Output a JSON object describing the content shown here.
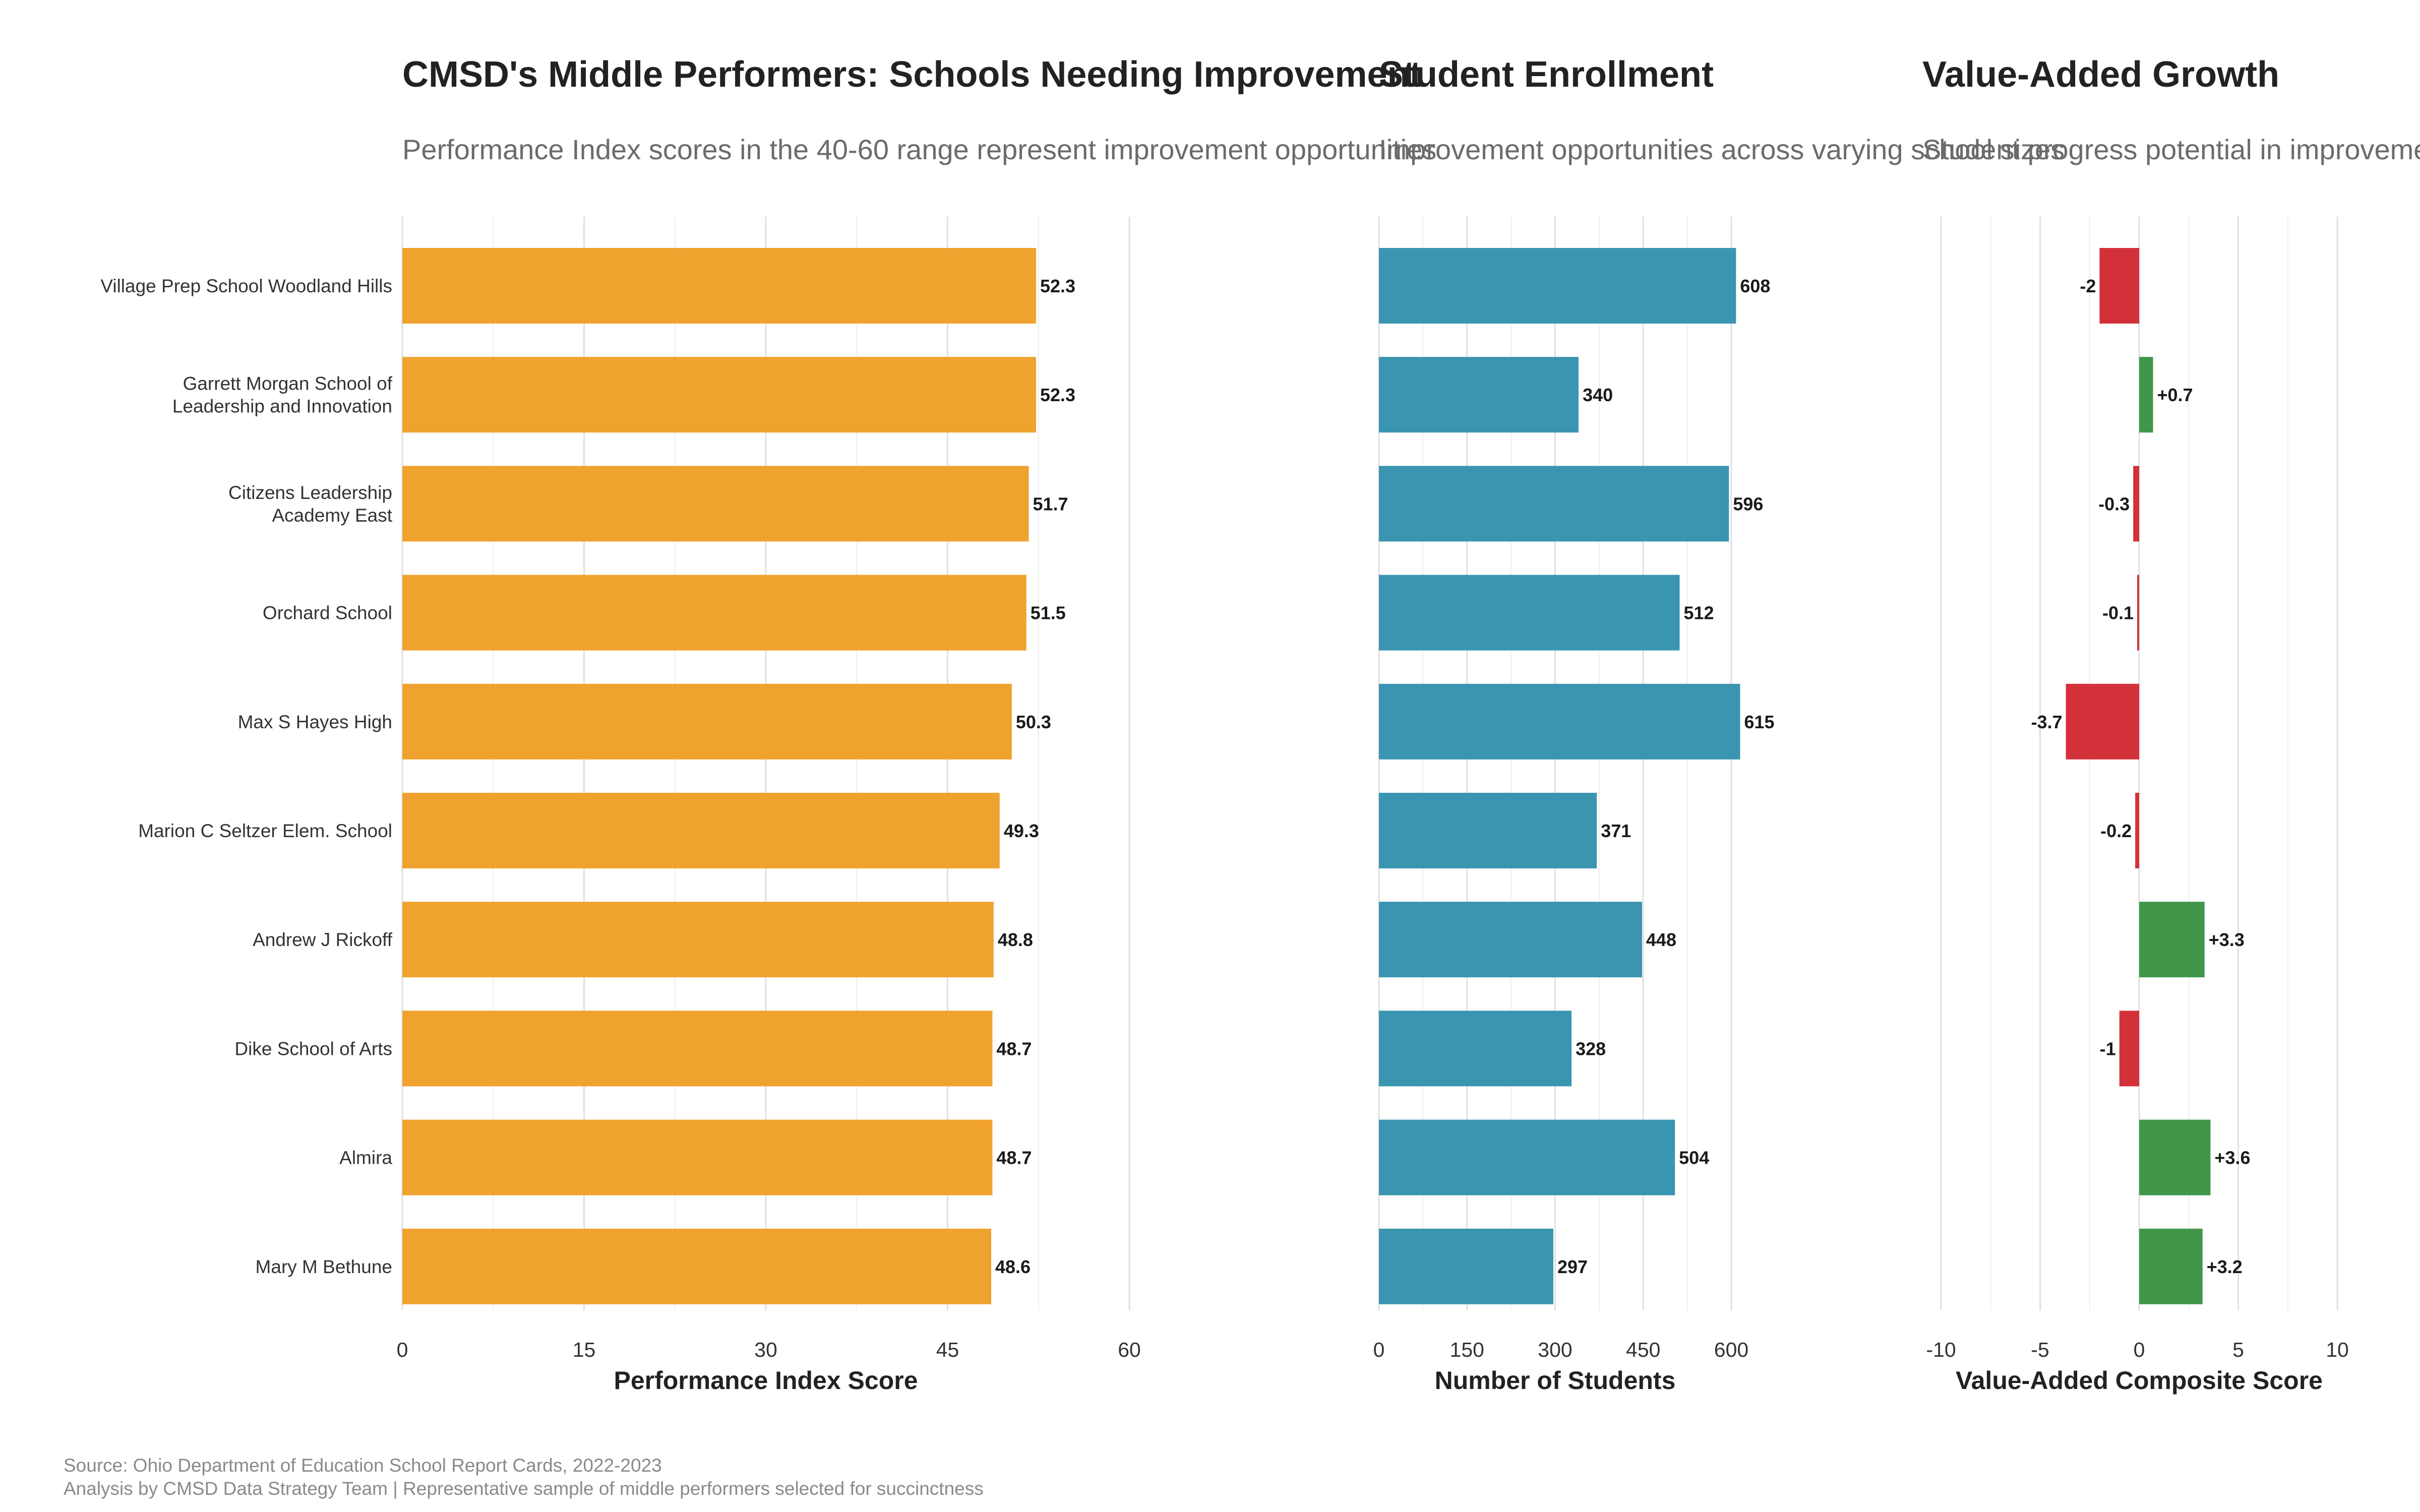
{
  "colors": {
    "performance": "#F0A22E",
    "enrollment": "#3A95B1",
    "negative": "#D3313A",
    "positive": "#42964A",
    "grid": "#e0e0e0"
  },
  "categories": [
    "Village Prep School Woodland Hills",
    "Garrett Morgan School of\nLeadership and Innovation",
    "Citizens Leadership\nAcademy East",
    "Orchard School",
    "Max S Hayes High",
    "Marion C Seltzer Elem. School",
    "Andrew J Rickoff",
    "Dike School of Arts",
    "Almira",
    "Mary M Bethune"
  ],
  "chart_data": [
    {
      "type": "bar",
      "orientation": "horizontal",
      "title": "CMSD's Middle Performers: Schools Needing Improvement",
      "subtitle": "Performance Index scores in the 40-60 range represent improvement opportunities",
      "xlabel": "Performance Index Score",
      "ylabel": "",
      "xlim": [
        0,
        60
      ],
      "ticks": [
        0,
        15,
        30,
        45,
        60
      ],
      "tick_labels": [
        "0",
        "15",
        "30",
        "45",
        "60"
      ],
      "values": [
        52.3,
        52.3,
        51.7,
        51.5,
        50.3,
        49.3,
        48.8,
        48.7,
        48.7,
        48.6
      ],
      "labels": [
        "52.3",
        "52.3",
        "51.7",
        "51.5",
        "50.3",
        "49.3",
        "48.8",
        "48.7",
        "48.7",
        "48.6"
      ],
      "grid": true
    },
    {
      "type": "bar",
      "orientation": "horizontal",
      "title": "Student Enrollment",
      "subtitle": "Improvement opportunities across varying school sizes",
      "xlabel": "Number of Students",
      "ylabel": "",
      "xlim": [
        0,
        600
      ],
      "ticks": [
        0,
        150,
        300,
        450,
        600
      ],
      "tick_labels": [
        "0",
        "150",
        "300",
        "450",
        "600"
      ],
      "values": [
        608,
        340,
        596,
        512,
        615,
        371,
        448,
        328,
        504,
        297
      ],
      "labels": [
        "608",
        "340",
        "596",
        "512",
        "615",
        "371",
        "448",
        "328",
        "504",
        "297"
      ],
      "grid": true
    },
    {
      "type": "bar",
      "orientation": "horizontal",
      "title": "Value-Added Growth",
      "subtitle": "Student progress potential in improvement schools",
      "xlabel": "Value-Added Composite Score",
      "ylabel": "",
      "xlim": [
        -10,
        10
      ],
      "ticks": [
        -10,
        -5,
        0,
        5,
        10
      ],
      "tick_labels": [
        "-10",
        "-5",
        "0",
        "5",
        "10"
      ],
      "values": [
        -2,
        0.7,
        -0.3,
        -0.1,
        -3.7,
        -0.2,
        3.3,
        -1,
        3.6,
        3.2
      ],
      "labels": [
        "-2",
        "+0.7",
        "-0.3",
        "-0.1",
        "-3.7",
        "-0.2",
        "+3.3",
        "-1",
        "+3.6",
        "+3.2"
      ],
      "grid": true
    }
  ],
  "caption": {
    "line1": "Source: Ohio Department of Education School Report Cards, 2022-2023",
    "line2": "Analysis by CMSD Data Strategy Team | Representative sample of middle performers selected for succinctness"
  }
}
